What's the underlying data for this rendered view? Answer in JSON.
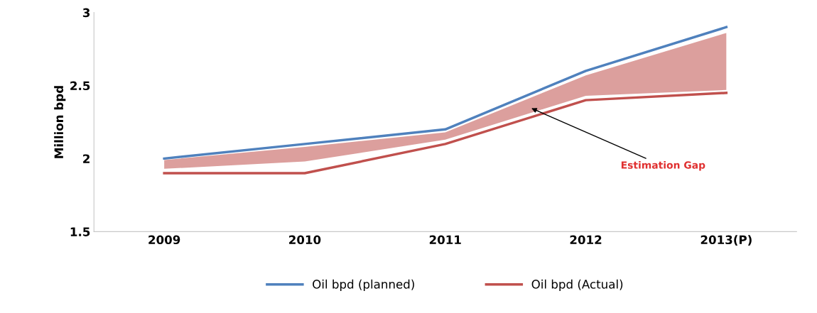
{
  "chart_data": {
    "type": "line",
    "ylabel": "Million bpd",
    "categories": [
      "2009",
      "2010",
      "2011",
      "2012",
      "2013(P)"
    ],
    "series": [
      {
        "name": "Oil bpd (planned)",
        "color": "#4f81bd",
        "values": [
          2.0,
          2.1,
          2.2,
          2.6,
          2.9
        ]
      },
      {
        "name": "Oil bpd (Actual)",
        "color": "#c0504d",
        "values": [
          1.9,
          1.9,
          2.1,
          2.4,
          2.45
        ],
        "lower": [
          1.93,
          1.98,
          2.13,
          2.43,
          2.47
        ],
        "upper": [
          1.99,
          2.08,
          2.18,
          2.57,
          2.86
        ]
      }
    ],
    "ylim": [
      1.5,
      3
    ],
    "yticks": [
      1.5,
      2,
      2.5,
      3
    ],
    "grid": false,
    "legend": "bottom",
    "marker": "none",
    "line_style": "solid",
    "annotations": [
      "Estimation Gap"
    ]
  }
}
